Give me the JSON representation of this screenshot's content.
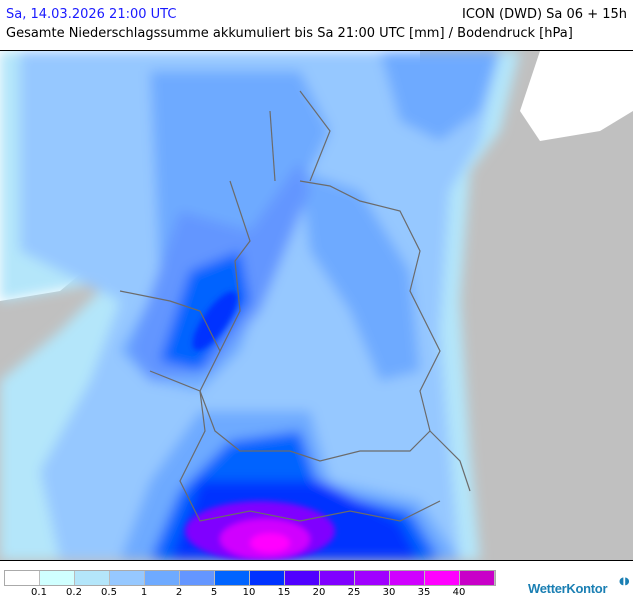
{
  "header": {
    "date": "Sa, 14.03.2026 21:00 UTC",
    "model": "ICON (DWD) Sa 06 + 15h",
    "subtitle": "Gesamte Niederschlagssumme akkumuliert bis Sa 21:00 UTC [mm] / Bodendruck [hPa]"
  },
  "legend": {
    "colors": [
      "#ffffff",
      "#d0ffff",
      "#b4e6fa",
      "#96c8ff",
      "#6eaaff",
      "#6496ff",
      "#0064ff",
      "#0032ff",
      "#5000ff",
      "#8000ff",
      "#a000ff",
      "#d000ff",
      "#ff00ff",
      "#c800c8"
    ],
    "labels": [
      "0.1",
      "0.2",
      "0.5",
      "1",
      "2",
      "5",
      "10",
      "15",
      "20",
      "25",
      "30",
      "35",
      "40"
    ]
  },
  "logo": "WetterKontor"
}
